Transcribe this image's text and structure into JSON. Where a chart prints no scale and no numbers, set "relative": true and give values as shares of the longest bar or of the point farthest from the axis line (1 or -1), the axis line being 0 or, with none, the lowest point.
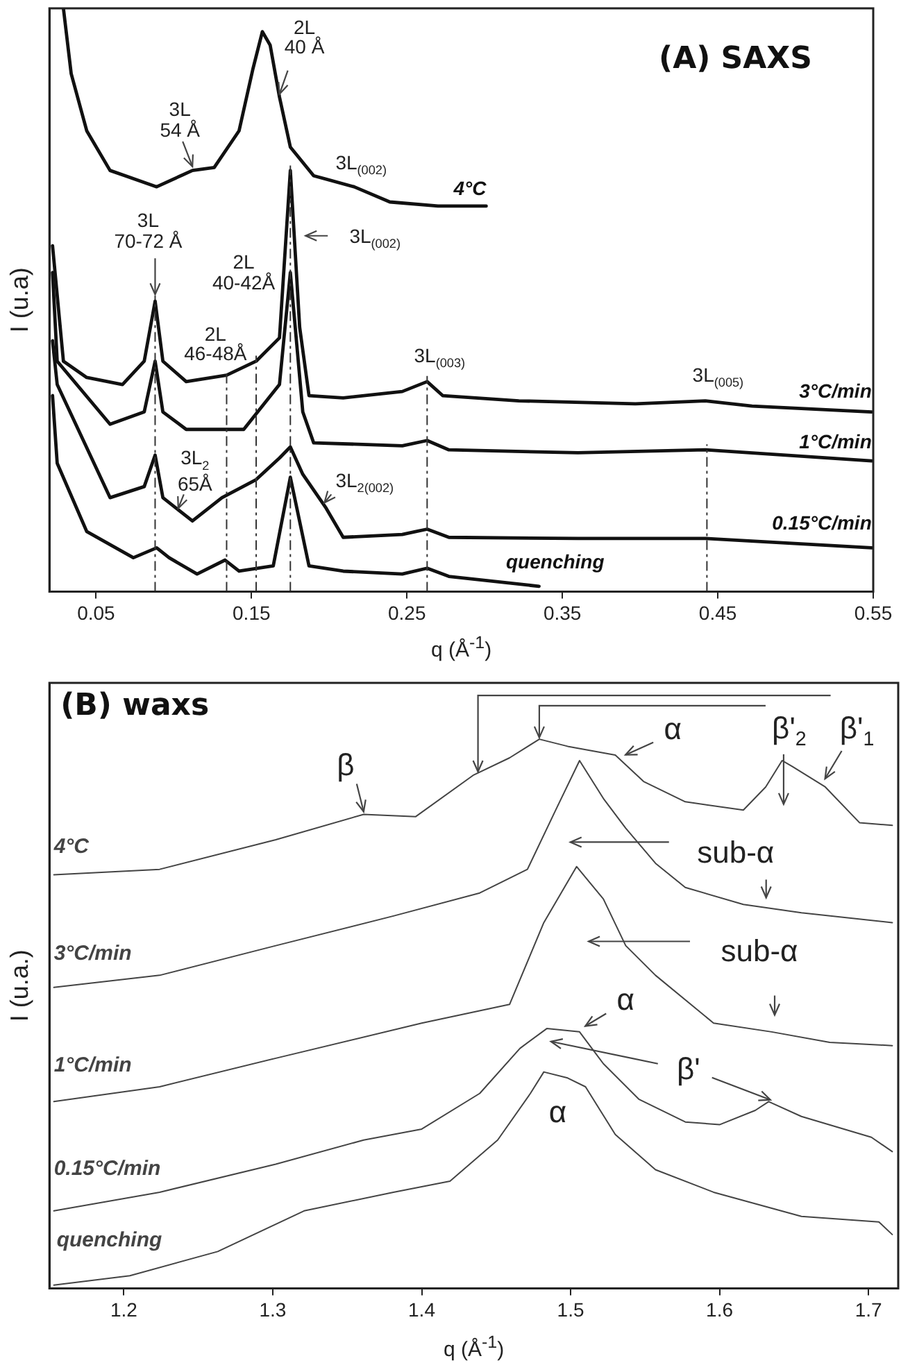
{
  "chart_data": [
    {
      "type": "line",
      "title": "(A) SAXS",
      "xlabel": "q (Å$^{-1}$)",
      "ylabel": "I (u.a)",
      "relative": true,
      "xlim": [
        0.02,
        0.55
      ],
      "xticks": [
        0.05,
        0.15,
        0.25,
        0.35,
        0.45,
        0.55
      ],
      "grid": false,
      "marker": "none",
      "line_style": "solid",
      "series": [
        {
          "name": "4°C",
          "color": "#111111",
          "x": [
            0.029,
            0.034,
            0.044,
            0.059,
            0.089,
            0.112,
            0.126,
            0.142,
            0.151,
            0.157,
            0.162,
            0.168,
            0.175,
            0.19,
            0.216,
            0.239,
            0.27,
            0.301
          ],
          "values": [
            1.0,
            0.888,
            0.79,
            0.722,
            0.694,
            0.722,
            0.727,
            0.79,
            0.897,
            0.96,
            0.937,
            0.848,
            0.762,
            0.713,
            0.694,
            0.668,
            0.661,
            0.661
          ]
        },
        {
          "name": "3°C/min",
          "color": "#111111",
          "x": [
            0.022,
            0.029,
            0.044,
            0.067,
            0.081,
            0.088,
            0.093,
            0.108,
            0.134,
            0.153,
            0.168,
            0.175,
            0.181,
            0.187,
            0.209,
            0.247,
            0.263,
            0.273,
            0.322,
            0.397,
            0.442,
            0.472,
            0.549
          ],
          "values": [
            0.593,
            0.395,
            0.367,
            0.355,
            0.395,
            0.498,
            0.395,
            0.36,
            0.371,
            0.395,
            0.435,
            0.722,
            0.453,
            0.336,
            0.332,
            0.343,
            0.36,
            0.336,
            0.327,
            0.322,
            0.327,
            0.318,
            0.308
          ]
        },
        {
          "name": "1°C/min",
          "color": "#111111",
          "x": [
            0.022,
            0.025,
            0.059,
            0.081,
            0.088,
            0.093,
            0.108,
            0.145,
            0.168,
            0.175,
            0.183,
            0.19,
            0.247,
            0.263,
            0.277,
            0.36,
            0.442,
            0.549
          ],
          "values": [
            0.547,
            0.395,
            0.287,
            0.308,
            0.395,
            0.308,
            0.278,
            0.278,
            0.355,
            0.547,
            0.308,
            0.255,
            0.25,
            0.259,
            0.243,
            0.238,
            0.243,
            0.224
          ]
        },
        {
          "name": "0.15°C/min",
          "color": "#111111",
          "x": [
            0.022,
            0.025,
            0.059,
            0.081,
            0.088,
            0.093,
            0.112,
            0.131,
            0.153,
            0.168,
            0.175,
            0.183,
            0.198,
            0.209,
            0.247,
            0.263,
            0.277,
            0.36,
            0.442,
            0.549
          ],
          "values": [
            0.43,
            0.355,
            0.161,
            0.18,
            0.234,
            0.161,
            0.121,
            0.161,
            0.192,
            0.229,
            0.248,
            0.201,
            0.143,
            0.093,
            0.098,
            0.107,
            0.093,
            0.091,
            0.091,
            0.075
          ]
        },
        {
          "name": "quenching",
          "color": "#111111",
          "x": [
            0.022,
            0.025,
            0.044,
            0.074,
            0.089,
            0.097,
            0.115,
            0.133,
            0.142,
            0.164,
            0.175,
            0.187,
            0.209,
            0.247,
            0.263,
            0.277,
            0.335
          ],
          "values": [
            0.336,
            0.22,
            0.103,
            0.058,
            0.075,
            0.058,
            0.03,
            0.054,
            0.035,
            0.044,
            0.196,
            0.044,
            0.035,
            0.03,
            0.04,
            0.026,
            0.009
          ]
        }
      ],
      "ref_lines": [
        {
          "axis": "x",
          "value": 0.088,
          "line_style": "dashed"
        },
        {
          "axis": "x",
          "value": 0.134,
          "line_style": "dashed"
        },
        {
          "axis": "x",
          "value": 0.153,
          "line_style": "dashed"
        },
        {
          "axis": "x",
          "value": 0.175,
          "line_style": "dashed"
        },
        {
          "axis": "x",
          "value": 0.263,
          "line_style": "dashed"
        },
        {
          "axis": "x",
          "value": 0.443,
          "line_style": "dashed"
        }
      ],
      "annotations": [
        {
          "text": "2L\n40 Å",
          "x": 0.168,
          "y": 0.853
        },
        {
          "text": "3L\n54 Å",
          "x": 0.112,
          "y": 0.724
        },
        {
          "text": "3L$_{(002)}$",
          "x": 0.225,
          "y": 0.69
        },
        {
          "text": "3L\n70-72 Å",
          "x": 0.088,
          "y": 0.5
        },
        {
          "text": "3L$_{(002)}$",
          "x": 0.183,
          "y": 0.61
        },
        "2L\n40-42Å",
        "2L\n46-48Å",
        {
          "text": "3L$_{(003)}$",
          "x": 0.263,
          "y": 0.36
        },
        {
          "text": "3L$_{(005)}$",
          "x": 0.443,
          "y": 0.33
        },
        {
          "text": "3L$_{2}$\n65Å",
          "x": 0.102,
          "y": 0.138
        },
        {
          "text": "3L$_{2(002)}$",
          "x": 0.196,
          "y": 0.15
        }
      ]
    },
    {
      "type": "line",
      "title": "(B) waxs",
      "xlabel": "q (Å$^{-1}$)",
      "ylabel": "I (u.a.)",
      "relative": true,
      "xlim": [
        1.15,
        1.72
      ],
      "xticks": [
        1.2,
        1.3,
        1.4,
        1.5,
        1.6,
        1.7
      ],
      "grid": false,
      "marker": "none",
      "line_style": "solid",
      "series": [
        {
          "name": "4°C",
          "color": "#444444",
          "x": [
            1.153,
            1.224,
            1.302,
            1.361,
            1.396,
            1.435,
            1.459,
            1.479,
            1.498,
            1.53,
            1.549,
            1.577,
            1.616,
            1.631,
            1.642,
            1.649,
            1.671,
            1.694,
            1.716
          ],
          "values": [
            0.753,
            0.763,
            0.817,
            0.863,
            0.859,
            0.935,
            0.966,
            1.0,
            0.987,
            0.971,
            0.923,
            0.886,
            0.871,
            0.913,
            0.961,
            0.95,
            0.913,
            0.848,
            0.843
          ]
        },
        {
          "name": "3°C/min",
          "color": "#444444",
          "x": [
            1.153,
            1.224,
            1.302,
            1.381,
            1.439,
            1.471,
            1.49,
            1.506,
            1.522,
            1.537,
            1.557,
            1.577,
            1.616,
            1.655,
            1.716
          ],
          "values": [
            0.548,
            0.57,
            0.624,
            0.678,
            0.72,
            0.763,
            0.871,
            0.961,
            0.892,
            0.838,
            0.774,
            0.73,
            0.699,
            0.684,
            0.666
          ]
        },
        {
          "name": "1°C/min",
          "color": "#444444",
          "x": [
            1.153,
            1.224,
            1.302,
            1.4,
            1.459,
            1.482,
            1.504,
            1.522,
            1.537,
            1.557,
            1.596,
            1.635,
            1.674,
            1.716
          ],
          "values": [
            0.34,
            0.367,
            0.419,
            0.483,
            0.517,
            0.666,
            0.768,
            0.709,
            0.624,
            0.57,
            0.483,
            0.467,
            0.448,
            0.442
          ]
        },
        {
          "name": "0.15°C/min",
          "color": "#444444",
          "x": [
            1.153,
            1.224,
            1.302,
            1.361,
            1.4,
            1.439,
            1.466,
            1.484,
            1.506,
            1.522,
            1.546,
            1.577,
            1.6,
            1.624,
            1.633,
            1.655,
            1.702,
            1.716
          ],
          "values": [
            0.141,
            0.175,
            0.226,
            0.27,
            0.29,
            0.355,
            0.437,
            0.473,
            0.467,
            0.409,
            0.344,
            0.303,
            0.298,
            0.324,
            0.34,
            0.313,
            0.275,
            0.249
          ]
        },
        {
          "name": "quenching",
          "color": "#444444",
          "x": [
            1.153,
            1.204,
            1.263,
            1.321,
            1.381,
            1.419,
            1.451,
            1.473,
            1.482,
            1.498,
            1.51,
            1.53,
            1.557,
            1.596,
            1.655,
            1.707,
            1.716
          ],
          "values": [
            0.006,
            0.023,
            0.067,
            0.141,
            0.175,
            0.195,
            0.27,
            0.355,
            0.394,
            0.383,
            0.367,
            0.28,
            0.216,
            0.175,
            0.131,
            0.121,
            0.098
          ]
        }
      ],
      "annotations": [
        {
          "text": "β",
          "x": 1.361,
          "y": 0.863
        },
        {
          "text": "α",
          "x": 1.535,
          "y": 0.969
        },
        "β'$_{2}$",
        {
          "text": "β'$_{1}$",
          "x": 1.669,
          "y": 0.923
        },
        "sub-α",
        "sub-α",
        {
          "text": "α",
          "x": 1.508,
          "y": 0.475
        },
        "β'",
        {
          "text": "α",
          "x": 1.482,
          "y": 0.394
        }
      ]
    }
  ]
}
